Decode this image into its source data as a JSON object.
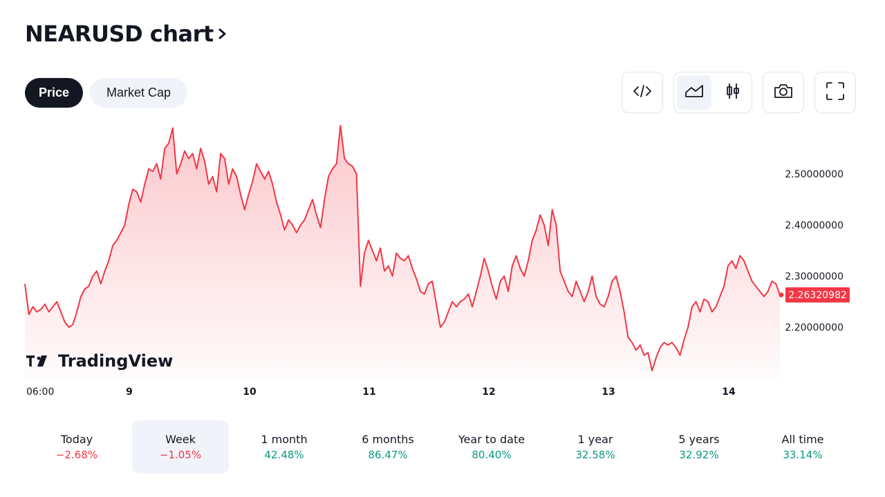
{
  "header": {
    "title": "NEARUSD chart"
  },
  "tabs": [
    {
      "label": "Price",
      "active": true
    },
    {
      "label": "Market Cap",
      "active": false
    }
  ],
  "toolbar": {
    "icons": [
      "embed-code-icon",
      "area-chart-icon",
      "candlestick-icon",
      "camera-icon",
      "fullscreen-icon"
    ],
    "selected_style": "area-chart"
  },
  "watermark": "TradingView",
  "colors": {
    "line": "#f23645",
    "positive": "#089981",
    "negative": "#f23645",
    "dark": "#131722"
  },
  "chart_data": {
    "type": "area",
    "xlabel": "",
    "ylabel": "",
    "x_ticks": [
      "06:00",
      "9",
      "10",
      "11",
      "12",
      "13",
      "14"
    ],
    "y_ticks": [
      "2.50000000",
      "2.40000000",
      "2.30000000",
      "2.20000000"
    ],
    "ylim": [
      2.1,
      2.6
    ],
    "last_price": "2.26320982",
    "series": [
      {
        "values": [
          2.285,
          2.225,
          2.24,
          2.23,
          2.235,
          2.245,
          2.23,
          2.24,
          2.25,
          2.23,
          2.21,
          2.2,
          2.205,
          2.23,
          2.26,
          2.275,
          2.28,
          2.3,
          2.31,
          2.285,
          2.31,
          2.33,
          2.36,
          2.37,
          2.385,
          2.4,
          2.44,
          2.47,
          2.465,
          2.445,
          2.48,
          2.51,
          2.505,
          2.52,
          2.49,
          2.55,
          2.56,
          2.59,
          2.5,
          2.52,
          2.545,
          2.53,
          2.54,
          2.51,
          2.55,
          2.525,
          2.48,
          2.495,
          2.465,
          2.54,
          2.53,
          2.48,
          2.51,
          2.495,
          2.46,
          2.43,
          2.46,
          2.485,
          2.52,
          2.505,
          2.49,
          2.505,
          2.48,
          2.445,
          2.42,
          2.39,
          2.41,
          2.4,
          2.385,
          2.4,
          2.41,
          2.43,
          2.45,
          2.42,
          2.395,
          2.45,
          2.495,
          2.51,
          2.52,
          2.595,
          2.53,
          2.52,
          2.515,
          2.5,
          2.28,
          2.345,
          2.37,
          2.35,
          2.33,
          2.355,
          2.31,
          2.32,
          2.3,
          2.345,
          2.335,
          2.33,
          2.34,
          2.315,
          2.295,
          2.27,
          2.265,
          2.285,
          2.29,
          2.245,
          2.2,
          2.21,
          2.23,
          2.25,
          2.24,
          2.25,
          2.255,
          2.265,
          2.24,
          2.27,
          2.3,
          2.335,
          2.31,
          2.28,
          2.255,
          2.29,
          2.3,
          2.27,
          2.32,
          2.34,
          2.315,
          2.3,
          2.33,
          2.37,
          2.39,
          2.42,
          2.4,
          2.36,
          2.43,
          2.4,
          2.31,
          2.29,
          2.27,
          2.26,
          2.29,
          2.27,
          2.25,
          2.27,
          2.3,
          2.26,
          2.245,
          2.24,
          2.26,
          2.29,
          2.3,
          2.27,
          2.23,
          2.18,
          2.17,
          2.155,
          2.165,
          2.145,
          2.15,
          2.115,
          2.14,
          2.16,
          2.17,
          2.165,
          2.17,
          2.16,
          2.145,
          2.175,
          2.2,
          2.24,
          2.25,
          2.23,
          2.255,
          2.25,
          2.23,
          2.24,
          2.26,
          2.28,
          2.32,
          2.33,
          2.315,
          2.34,
          2.33,
          2.31,
          2.29,
          2.28,
          2.27,
          2.26,
          2.27,
          2.29,
          2.285,
          2.263
        ]
      }
    ]
  },
  "periods": [
    {
      "label": "Today",
      "value": "−2.68%",
      "trend": "neg",
      "selected": false
    },
    {
      "label": "Week",
      "value": "−1.05%",
      "trend": "neg",
      "selected": true
    },
    {
      "label": "1 month",
      "value": "42.48%",
      "trend": "pos",
      "selected": false
    },
    {
      "label": "6 months",
      "value": "86.47%",
      "trend": "pos",
      "selected": false
    },
    {
      "label": "Year to date",
      "value": "80.40%",
      "trend": "pos",
      "selected": false
    },
    {
      "label": "1 year",
      "value": "32.58%",
      "trend": "pos",
      "selected": false
    },
    {
      "label": "5 years",
      "value": "32.92%",
      "trend": "pos",
      "selected": false
    },
    {
      "label": "All time",
      "value": "33.14%",
      "trend": "pos",
      "selected": false
    }
  ]
}
